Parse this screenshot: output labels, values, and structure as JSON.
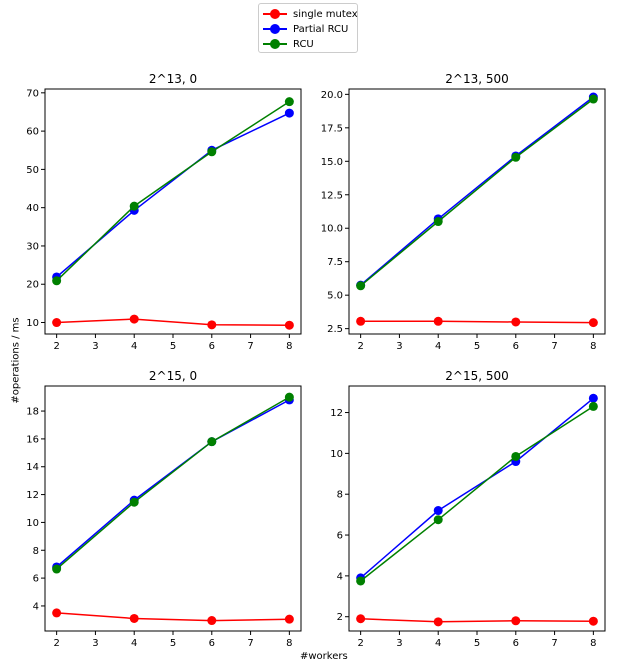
{
  "figure": {
    "xlabel": "#workers",
    "ylabel": "#operations / ms"
  },
  "legend": [
    {
      "name": "single mutex",
      "color": "#ff0000"
    },
    {
      "name": "Partial RCU",
      "color": "#0000ff"
    },
    {
      "name": "RCU",
      "color": "#008000"
    }
  ],
  "chart_data": [
    {
      "type": "line",
      "title": "2^13, 0",
      "x": [
        2,
        4,
        6,
        8
      ],
      "xticks": [
        2,
        3,
        4,
        5,
        6,
        7,
        8
      ],
      "yticks": [
        10,
        20,
        30,
        40,
        50,
        60,
        70
      ],
      "ytick_labels": [
        "10",
        "20",
        "30",
        "40",
        "50",
        "60",
        "70"
      ],
      "xlim": [
        1.7,
        8.3
      ],
      "ylim": [
        7,
        71
      ],
      "series": [
        {
          "name": "single mutex",
          "color": "#ff0000",
          "values": [
            10.0,
            10.9,
            9.4,
            9.3
          ]
        },
        {
          "name": "Partial RCU",
          "color": "#0000ff",
          "values": [
            21.9,
            39.3,
            55.0,
            64.7
          ]
        },
        {
          "name": "RCU",
          "color": "#008000",
          "values": [
            20.9,
            40.4,
            54.6,
            67.7
          ]
        }
      ]
    },
    {
      "type": "line",
      "title": "2^13, 500",
      "x": [
        2,
        4,
        6,
        8
      ],
      "xticks": [
        2,
        3,
        4,
        5,
        6,
        7,
        8
      ],
      "yticks": [
        2.5,
        5.0,
        7.5,
        10.0,
        12.5,
        15.0,
        17.5,
        20.0
      ],
      "ytick_labels": [
        "2.5",
        "5.0",
        "7.5",
        "10.0",
        "12.5",
        "15.0",
        "17.5",
        "20.0"
      ],
      "xlim": [
        1.7,
        8.3
      ],
      "ylim": [
        2.1,
        20.4
      ],
      "series": [
        {
          "name": "single mutex",
          "color": "#ff0000",
          "values": [
            3.05,
            3.05,
            3.0,
            2.95
          ]
        },
        {
          "name": "Partial RCU",
          "color": "#0000ff",
          "values": [
            5.75,
            10.7,
            15.4,
            19.8
          ]
        },
        {
          "name": "RCU",
          "color": "#008000",
          "values": [
            5.7,
            10.5,
            15.3,
            19.65
          ]
        }
      ]
    },
    {
      "type": "line",
      "title": "2^15, 0",
      "x": [
        2,
        4,
        6,
        8
      ],
      "xticks": [
        2,
        3,
        4,
        5,
        6,
        7,
        8
      ],
      "yticks": [
        4,
        6,
        8,
        10,
        12,
        14,
        16,
        18
      ],
      "ytick_labels": [
        "4",
        "6",
        "8",
        "10",
        "12",
        "14",
        "16",
        "18"
      ],
      "xlim": [
        1.7,
        8.3
      ],
      "ylim": [
        2.2,
        19.8
      ],
      "series": [
        {
          "name": "single mutex",
          "color": "#ff0000",
          "values": [
            3.5,
            3.1,
            2.95,
            3.05
          ]
        },
        {
          "name": "Partial RCU",
          "color": "#0000ff",
          "values": [
            6.8,
            11.6,
            15.8,
            18.8
          ]
        },
        {
          "name": "RCU",
          "color": "#008000",
          "values": [
            6.65,
            11.45,
            15.8,
            19.0
          ]
        }
      ]
    },
    {
      "type": "line",
      "title": "2^15, 500",
      "x": [
        2,
        4,
        6,
        8
      ],
      "xticks": [
        2,
        3,
        4,
        5,
        6,
        7,
        8
      ],
      "yticks": [
        2,
        4,
        6,
        8,
        10,
        12
      ],
      "ytick_labels": [
        "2",
        "4",
        "6",
        "8",
        "10",
        "12"
      ],
      "xlim": [
        1.7,
        8.3
      ],
      "ylim": [
        1.3,
        13.3
      ],
      "series": [
        {
          "name": "single mutex",
          "color": "#ff0000",
          "values": [
            1.9,
            1.75,
            1.8,
            1.78
          ]
        },
        {
          "name": "Partial RCU",
          "color": "#0000ff",
          "values": [
            3.9,
            7.2,
            9.6,
            12.7
          ]
        },
        {
          "name": "RCU",
          "color": "#008000",
          "values": [
            3.75,
            6.75,
            9.85,
            12.3
          ]
        }
      ]
    }
  ]
}
